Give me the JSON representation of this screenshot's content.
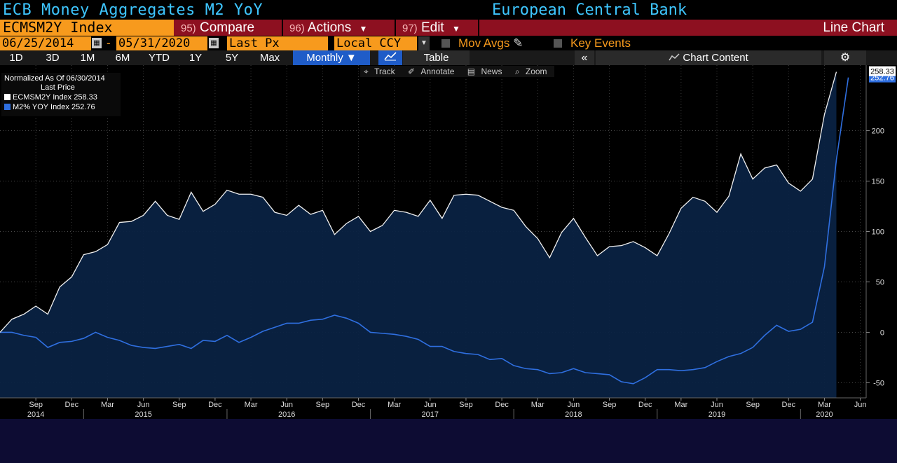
{
  "header": {
    "title": "ECB Money Aggregates M2 YoY",
    "source": "European Central Bank"
  },
  "toolbar": {
    "ticker": "ECMSM2Y Index",
    "compare_num": "95)",
    "compare": "Compare",
    "actions_num": "96)",
    "actions": "Actions",
    "edit_num": "97)",
    "edit": "Edit",
    "chart_type": "Line Chart"
  },
  "controls": {
    "start_date": "06/25/2014",
    "end_date": "05/31/2020",
    "dash": "-",
    "price_field": "Last Px",
    "currency": "Local CCY",
    "mov_avgs": "Mov Avgs",
    "key_events": "Key Events"
  },
  "periods": [
    "1D",
    "3D",
    "1M",
    "6M",
    "YTD",
    "1Y",
    "5Y",
    "Max"
  ],
  "frequency": "Monthly",
  "view_table": "Table",
  "chart_content": "Chart Content",
  "tools": [
    "Track",
    "Annotate",
    "News",
    "Zoom"
  ],
  "legend": {
    "normalized": "Normalized As Of 06/30/2014",
    "last_price": "Last Price",
    "s1": "ECMSM2Y Index 258.33",
    "s2": "M2% YOY Index 252.76"
  },
  "colors": {
    "series1": "#ffffff",
    "series2": "#2f6fe0",
    "area": "#0a2242",
    "accent": "#f79a1d",
    "title": "#3ec6ff"
  },
  "chart_data": {
    "type": "line",
    "ylim": [
      -65,
      265
    ],
    "yticks": [
      -50,
      0,
      50,
      100,
      150,
      200
    ],
    "month_ticks": [
      {
        "m": "2014-09",
        "label": "Sep"
      },
      {
        "m": "2014-12",
        "label": "Dec"
      },
      {
        "m": "2015-03",
        "label": "Mar"
      },
      {
        "m": "2015-06",
        "label": "Jun"
      },
      {
        "m": "2015-09",
        "label": "Sep"
      },
      {
        "m": "2015-12",
        "label": "Dec"
      },
      {
        "m": "2016-03",
        "label": "Mar"
      },
      {
        "m": "2016-06",
        "label": "Jun"
      },
      {
        "m": "2016-09",
        "label": "Sep"
      },
      {
        "m": "2016-12",
        "label": "Dec"
      },
      {
        "m": "2017-03",
        "label": "Mar"
      },
      {
        "m": "2017-06",
        "label": "Jun"
      },
      {
        "m": "2017-09",
        "label": "Sep"
      },
      {
        "m": "2017-12",
        "label": "Dec"
      },
      {
        "m": "2018-03",
        "label": "Mar"
      },
      {
        "m": "2018-06",
        "label": "Jun"
      },
      {
        "m": "2018-09",
        "label": "Sep"
      },
      {
        "m": "2018-12",
        "label": "Dec"
      },
      {
        "m": "2019-03",
        "label": "Mar"
      },
      {
        "m": "2019-06",
        "label": "Jun"
      },
      {
        "m": "2019-09",
        "label": "Sep"
      },
      {
        "m": "2019-12",
        "label": "Dec"
      },
      {
        "m": "2020-03",
        "label": "Mar"
      },
      {
        "m": "2020-06",
        "label": "Jun"
      }
    ],
    "year_labels": [
      {
        "m": "2014-09",
        "label": "2014"
      },
      {
        "m": "2015-06",
        "label": "2015"
      },
      {
        "m": "2016-06",
        "label": "2016"
      },
      {
        "m": "2017-06",
        "label": "2017"
      },
      {
        "m": "2018-06",
        "label": "2018"
      },
      {
        "m": "2019-06",
        "label": "2019"
      },
      {
        "m": "2020-03",
        "label": "2020"
      }
    ],
    "last_values": {
      "ECMSM2Y": "258.33",
      "M2": "252.76"
    },
    "series": [
      {
        "name": "ECMSM2Y Index",
        "x": [
          "2014-06",
          "2014-07",
          "2014-08",
          "2014-09",
          "2014-10",
          "2014-11",
          "2014-12",
          "2015-01",
          "2015-02",
          "2015-03",
          "2015-04",
          "2015-05",
          "2015-06",
          "2015-07",
          "2015-08",
          "2015-09",
          "2015-10",
          "2015-11",
          "2015-12",
          "2016-01",
          "2016-02",
          "2016-03",
          "2016-04",
          "2016-05",
          "2016-06",
          "2016-07",
          "2016-08",
          "2016-09",
          "2016-10",
          "2016-11",
          "2016-12",
          "2017-01",
          "2017-02",
          "2017-03",
          "2017-04",
          "2017-05",
          "2017-06",
          "2017-07",
          "2017-08",
          "2017-09",
          "2017-10",
          "2017-11",
          "2017-12",
          "2018-01",
          "2018-02",
          "2018-03",
          "2018-04",
          "2018-05",
          "2018-06",
          "2018-07",
          "2018-08",
          "2018-09",
          "2018-10",
          "2018-11",
          "2018-12",
          "2019-01",
          "2019-02",
          "2019-03",
          "2019-04",
          "2019-05",
          "2019-06",
          "2019-07",
          "2019-08",
          "2019-09",
          "2019-10",
          "2019-11",
          "2019-12",
          "2020-01",
          "2020-02",
          "2020-03",
          "2020-04"
        ],
        "values": [
          0,
          13,
          18,
          26,
          18,
          45,
          55,
          77,
          80,
          87,
          109,
          110,
          116,
          130,
          116,
          112,
          139,
          120,
          127,
          141,
          137,
          137,
          134,
          119,
          116,
          126,
          117,
          121,
          97,
          108,
          115,
          100,
          106,
          121,
          119,
          115,
          131,
          113,
          136,
          137,
          136,
          130,
          124,
          121,
          105,
          93,
          74,
          99,
          113,
          94,
          76,
          85,
          86,
          90,
          84,
          76,
          98,
          123,
          134,
          130,
          119,
          135,
          177,
          152,
          163,
          166,
          148,
          140,
          152,
          216,
          258.33
        ]
      },
      {
        "name": "M2% YOY Index",
        "x": [
          "2014-06",
          "2014-07",
          "2014-08",
          "2014-09",
          "2014-10",
          "2014-11",
          "2014-12",
          "2015-01",
          "2015-02",
          "2015-03",
          "2015-04",
          "2015-05",
          "2015-06",
          "2015-07",
          "2015-08",
          "2015-09",
          "2015-10",
          "2015-11",
          "2015-12",
          "2016-01",
          "2016-02",
          "2016-03",
          "2016-04",
          "2016-05",
          "2016-06",
          "2016-07",
          "2016-08",
          "2016-09",
          "2016-10",
          "2016-11",
          "2016-12",
          "2017-01",
          "2017-02",
          "2017-03",
          "2017-04",
          "2017-05",
          "2017-06",
          "2017-07",
          "2017-08",
          "2017-09",
          "2017-10",
          "2017-11",
          "2017-12",
          "2018-01",
          "2018-02",
          "2018-03",
          "2018-04",
          "2018-05",
          "2018-06",
          "2018-07",
          "2018-08",
          "2018-09",
          "2018-10",
          "2018-11",
          "2018-12",
          "2019-01",
          "2019-02",
          "2019-03",
          "2019-04",
          "2019-05",
          "2019-06",
          "2019-07",
          "2019-08",
          "2019-09",
          "2019-10",
          "2019-11",
          "2019-12",
          "2020-01",
          "2020-02",
          "2020-03",
          "2020-04",
          "2020-05"
        ],
        "values": [
          0,
          0,
          -3,
          -5,
          -15,
          -10,
          -9,
          -6,
          0,
          -5,
          -8,
          -13,
          -15,
          -16,
          -14,
          -12,
          -16,
          -8,
          -9,
          -3,
          -10,
          -5,
          1,
          5,
          9,
          9,
          12,
          13,
          17,
          14,
          9,
          0,
          -1,
          -2,
          -4,
          -7,
          -14,
          -14,
          -19,
          -21,
          -22,
          -27,
          -26,
          -33,
          -36,
          -37,
          -41,
          -40,
          -36,
          -40,
          -41,
          -42,
          -49,
          -51,
          -45,
          -37,
          -37,
          -38,
          -37,
          -35,
          -29,
          -24,
          -21,
          -15,
          -3,
          7,
          1,
          3,
          10,
          65,
          171,
          252.76
        ]
      }
    ]
  }
}
